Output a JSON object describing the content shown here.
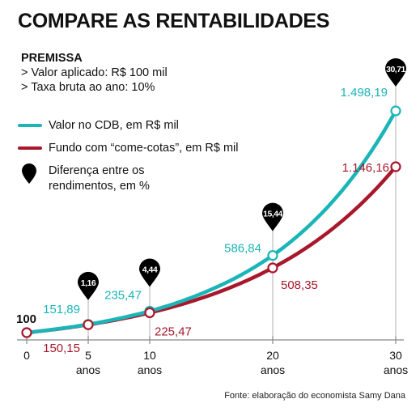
{
  "title": "COMPARE AS RENTABILIDADES",
  "premissa": {
    "heading": "PREMISSA",
    "lines": [
      "> Valor aplicado: R$ 100 mil",
      "> Taxa bruta ao ano: 10%"
    ]
  },
  "legend": {
    "cdb": "Valor no CDB, em R$ mil",
    "fundo": "Fundo com “come-cotas”, em R$ mil",
    "diff_line1": "Diferença entre os",
    "diff_line2": "rendimentos, em %"
  },
  "source": "Fonte: elaboração do economista Samy Dana",
  "colors": {
    "cdb": "#1bb5b7",
    "fundo": "#a8182b",
    "pin": "#000000",
    "axis": "#888888"
  },
  "chart_data": {
    "type": "line",
    "x": [
      0,
      5,
      10,
      20,
      30
    ],
    "tick_labels": [
      {
        "num": "0",
        "unit": ""
      },
      {
        "num": "5",
        "unit": "anos"
      },
      {
        "num": "10",
        "unit": "anos"
      },
      {
        "num": "20",
        "unit": "anos"
      },
      {
        "num": "30",
        "unit": "anos"
      }
    ],
    "xlim": [
      0,
      30
    ],
    "ylim": [
      100,
      1498.19
    ],
    "start_label": "100",
    "series": [
      {
        "key": "cdb",
        "name": "Valor no CDB, em R$ mil",
        "values": [
          100,
          151.89,
          235.47,
          586.84,
          1498.19
        ],
        "labels": [
          "",
          "151,89",
          "235,47",
          "586,84",
          "1.498,19"
        ]
      },
      {
        "key": "fundo",
        "name": "Fundo com “come-cotas”, em R$ mil",
        "values": [
          100,
          150.15,
          225.47,
          508.35,
          1146.16
        ],
        "labels": [
          "",
          "150,15",
          "225,47",
          "508,35",
          "1.146,16"
        ]
      }
    ],
    "difference_pct": [
      {
        "x": 5,
        "label": "1,16"
      },
      {
        "x": 10,
        "label": "4,44"
      },
      {
        "x": 20,
        "label": "15,44"
      },
      {
        "x": 30,
        "label": "30,71"
      }
    ]
  }
}
